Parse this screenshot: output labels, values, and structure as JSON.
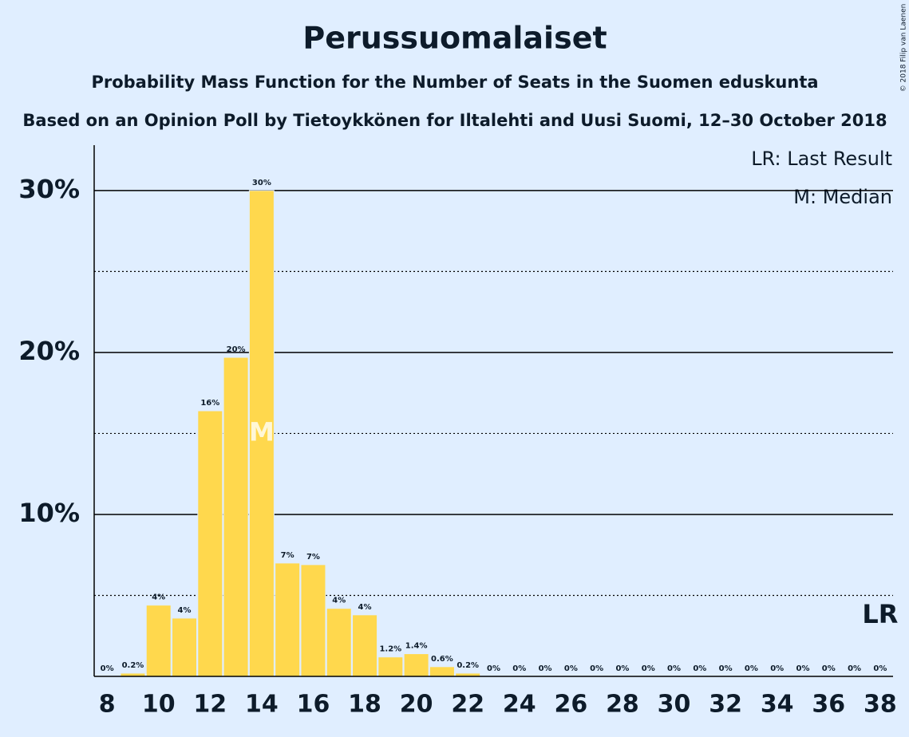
{
  "chart_data": {
    "type": "bar",
    "title": "Perussuomalaiset",
    "subtitle": "Probability Mass Function for the Number of Seats in the Suomen eduskunta",
    "subtitle2": "Based on an Opinion Poll by Tietoykkönen for Iltalehti and Uusi Suomi, 12–30 October 2018",
    "copyright": "© 2018 Filip van Laenen",
    "x": [
      8,
      9,
      10,
      11,
      12,
      13,
      14,
      15,
      16,
      17,
      18,
      19,
      20,
      21,
      22,
      23,
      24,
      25,
      26,
      27,
      28,
      29,
      30,
      31,
      32,
      33,
      34,
      35,
      36,
      37,
      38
    ],
    "values": [
      0,
      0.2,
      4.4,
      3.6,
      16.4,
      19.7,
      30.0,
      7.0,
      6.9,
      4.2,
      3.8,
      1.2,
      1.4,
      0.6,
      0.2,
      0,
      0,
      0,
      0,
      0,
      0,
      0,
      0,
      0,
      0,
      0,
      0,
      0,
      0,
      0,
      0
    ],
    "value_labels": [
      "0%",
      "0.2%",
      "4%",
      "4%",
      "16%",
      "20%",
      "30%",
      "7%",
      "7%",
      "4%",
      "4%",
      "1.2%",
      "1.4%",
      "0.6%",
      "0.2%",
      "0%",
      "0%",
      "0%",
      "0%",
      "0%",
      "0%",
      "0%",
      "0%",
      "0%",
      "0%",
      "0%",
      "0%",
      "0%",
      "0%",
      "0%",
      "0%"
    ],
    "color": "#ffd84d",
    "xlim": [
      7.5,
      38.5
    ],
    "xticks": [
      8,
      10,
      12,
      14,
      16,
      18,
      20,
      22,
      24,
      26,
      28,
      30,
      32,
      34,
      36,
      38
    ],
    "ylim": [
      0,
      32.8
    ],
    "yticks": [
      {
        "value": 10,
        "label": "10%"
      },
      {
        "value": 20,
        "label": "20%"
      },
      {
        "value": 30,
        "label": "30%"
      }
    ],
    "minor_yticks": [
      5,
      15,
      25
    ],
    "grid": true,
    "legend": [
      "LR: Last Result",
      "M: Median"
    ],
    "median": {
      "x": 14,
      "label": "M"
    },
    "last_result": {
      "x": 38,
      "label": "LR"
    }
  }
}
